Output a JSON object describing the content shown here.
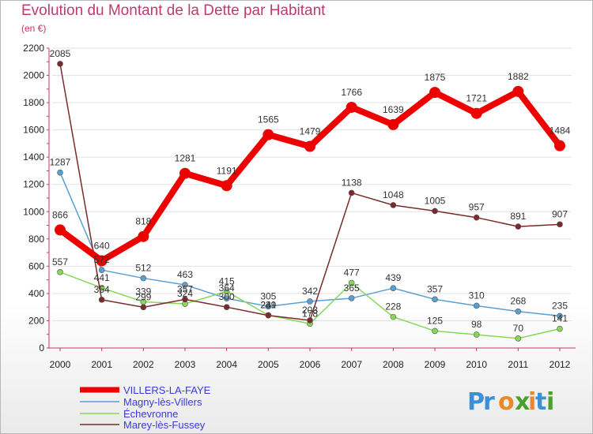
{
  "title": "Evolution du Montant de la Dette par Habitant",
  "subtitle": "(en €)",
  "brand": {
    "letters": [
      "P",
      "r",
      "o",
      "x",
      "i",
      "t",
      "i"
    ],
    "colors": [
      "#3d8fd6",
      "#3d8fd6",
      "#e8892b",
      "#4aa02c",
      "#e8892b",
      "#3d8fd6",
      "#4aa02c"
    ]
  },
  "chart_data": {
    "type": "line",
    "title": "Evolution du Montant de la Dette par Habitant",
    "subtitle": "(en €)",
    "xlabel": "",
    "ylabel": "",
    "ylim": [
      0,
      2200
    ],
    "yticks": [
      0,
      200,
      400,
      600,
      800,
      1000,
      1200,
      1400,
      1600,
      1800,
      2000,
      2200
    ],
    "x": [
      "2000",
      "2001",
      "2002",
      "2003",
      "2004",
      "2005",
      "2006",
      "2007",
      "2008",
      "2009",
      "2010",
      "2011",
      "2012"
    ],
    "grid": true,
    "legend": "bottom-left",
    "series": [
      {
        "name": "VILLERS-LA-FAYE",
        "color": "#ee0000",
        "width": 8,
        "marker": 7,
        "values": [
          866,
          640,
          818,
          1281,
          1191,
          1565,
          1479,
          1766,
          1639,
          1875,
          1721,
          1882,
          1484
        ],
        "labels": [
          "866",
          "640",
          "818",
          "1281",
          "1191",
          "1565",
          "1479",
          "1766",
          "1639",
          "1875",
          "1721",
          "1882",
          "1484"
        ]
      },
      {
        "name": "Magny-lès-Villers",
        "color": "#5a9fd4",
        "width": 1.5,
        "marker": 3.5,
        "values": [
          1287,
          572,
          512,
          463,
          364,
          305,
          342,
          365,
          439,
          357,
          310,
          268,
          235
        ],
        "labels": [
          "1287",
          "572",
          "512",
          "463",
          "364",
          "305",
          "342",
          "365",
          "439",
          "357",
          "310",
          "268",
          "235"
        ]
      },
      {
        "name": "Échevronne",
        "color": "#88d858",
        "width": 1.5,
        "marker": 3.5,
        "values": [
          557,
          441,
          339,
          324,
          415,
          241,
          178,
          477,
          228,
          125,
          98,
          70,
          141
        ],
        "labels": [
          "557",
          "441",
          "339",
          "324",
          "415",
          "241",
          "178",
          "477",
          "228",
          "125",
          "98",
          "70",
          "141"
        ]
      },
      {
        "name": "Marey-lès-Fussey",
        "color": "#7a2a2a",
        "width": 1.5,
        "marker": 3.5,
        "values": [
          2085,
          354,
          299,
          357,
          300,
          239,
          203,
          1138,
          1048,
          1005,
          957,
          891,
          907
        ],
        "labels": [
          "2085",
          "354",
          "299",
          "357",
          "300",
          "239",
          "203",
          "1138",
          "1048",
          "1005",
          "957",
          "891",
          "907"
        ]
      }
    ]
  }
}
